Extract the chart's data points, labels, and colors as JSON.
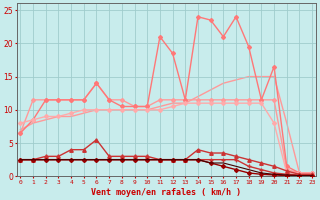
{
  "x": [
    0,
    1,
    2,
    3,
    4,
    5,
    6,
    7,
    8,
    9,
    10,
    11,
    12,
    13,
    14,
    15,
    16,
    17,
    18,
    19,
    20,
    21,
    22,
    23
  ],
  "series": [
    {
      "values": [
        7,
        8,
        8.5,
        9,
        9,
        9.5,
        10,
        10,
        10,
        10,
        10,
        10.5,
        11,
        11,
        12,
        13,
        14,
        14.5,
        15,
        15,
        15,
        8,
        0.5,
        0.5
      ],
      "color": "#FF9999",
      "lw": 1.0,
      "marker": null,
      "ms": 0,
      "zorder": 1
    },
    {
      "values": [
        6.5,
        11.5,
        11.5,
        11.5,
        11.5,
        11.5,
        14.0,
        11.5,
        11.5,
        10.5,
        10.5,
        11.5,
        11.5,
        11.5,
        11.5,
        11.5,
        11.5,
        11.5,
        11.5,
        11.5,
        11.5,
        1.0,
        0.5,
        0.5
      ],
      "color": "#FF9999",
      "lw": 1.0,
      "marker": "D",
      "ms": 2.0,
      "zorder": 2
    },
    {
      "values": [
        6.5,
        8.5,
        11.5,
        11.5,
        11.5,
        11.5,
        14.0,
        11.5,
        10.5,
        10.5,
        10.5,
        21.0,
        18.5,
        11.5,
        24.0,
        23.5,
        21.0,
        24.0,
        19.5,
        11.5,
        16.5,
        1.5,
        0.5,
        0.5
      ],
      "color": "#FF7777",
      "lw": 1.0,
      "marker": "D",
      "ms": 2.0,
      "zorder": 2
    },
    {
      "values": [
        8,
        8.5,
        9,
        9,
        9.5,
        10,
        10,
        10,
        10,
        10,
        10,
        10,
        10.5,
        11,
        11,
        11,
        11,
        11,
        11,
        11,
        8,
        0.5,
        0.5,
        0.5
      ],
      "color": "#FFAAAA",
      "lw": 1.0,
      "marker": "D",
      "ms": 2.0,
      "zorder": 2
    },
    {
      "values": [
        2.5,
        2.5,
        3.0,
        3.0,
        4.0,
        4.0,
        5.5,
        3.0,
        3.0,
        3.0,
        3.0,
        2.5,
        2.5,
        2.5,
        4.0,
        3.5,
        3.5,
        3.0,
        2.5,
        2.0,
        1.5,
        0.8,
        0.3,
        0.3
      ],
      "color": "#CC3333",
      "lw": 1.0,
      "marker": "^",
      "ms": 2.5,
      "zorder": 3
    },
    {
      "values": [
        2.5,
        2.5,
        2.5,
        2.5,
        2.5,
        2.5,
        2.5,
        2.5,
        2.5,
        2.5,
        2.5,
        2.5,
        2.5,
        2.5,
        2.5,
        2.5,
        2.5,
        2.5,
        1.5,
        1.0,
        0.5,
        0.3,
        0.2,
        0.2
      ],
      "color": "#CC3333",
      "lw": 1.0,
      "marker": "+",
      "ms": 3.0,
      "zorder": 3
    },
    {
      "values": [
        2.5,
        2.5,
        2.5,
        2.5,
        2.5,
        2.5,
        2.5,
        2.5,
        2.5,
        2.5,
        2.5,
        2.5,
        2.5,
        2.5,
        2.5,
        2.0,
        2.0,
        1.5,
        1.0,
        0.5,
        0.3,
        0.2,
        0.1,
        0.1
      ],
      "color": "#440000",
      "lw": 0.8,
      "marker": null,
      "ms": 0,
      "zorder": 4
    },
    {
      "values": [
        2.5,
        2.5,
        2.5,
        2.5,
        2.5,
        2.5,
        2.5,
        2.5,
        2.5,
        2.5,
        2.5,
        2.5,
        2.5,
        2.5,
        2.5,
        2.0,
        1.5,
        1.0,
        0.5,
        0.3,
        0.2,
        0.1,
        0.1,
        0.1
      ],
      "color": "#990000",
      "lw": 1.0,
      "marker": "D",
      "ms": 2.0,
      "zorder": 3
    }
  ],
  "xlim": [
    -0.3,
    23.3
  ],
  "ylim": [
    0,
    26
  ],
  "yticks": [
    0,
    5,
    10,
    15,
    20,
    25
  ],
  "xtick_labels": [
    "0",
    "1",
    "2",
    "3",
    "4",
    "5",
    "6",
    "7",
    "8",
    "9",
    "10",
    "11",
    "12",
    "13",
    "14",
    "15",
    "16",
    "17",
    "18",
    "19",
    "20",
    "21",
    "22",
    "23"
  ],
  "xlabel": "Vent moyen/en rafales ( km/h )",
  "bg_color": "#C8ECEC",
  "grid_color": "#A0CCCC",
  "tick_color": "#CC0000",
  "label_color": "#CC0000",
  "axis_color": "#666666"
}
